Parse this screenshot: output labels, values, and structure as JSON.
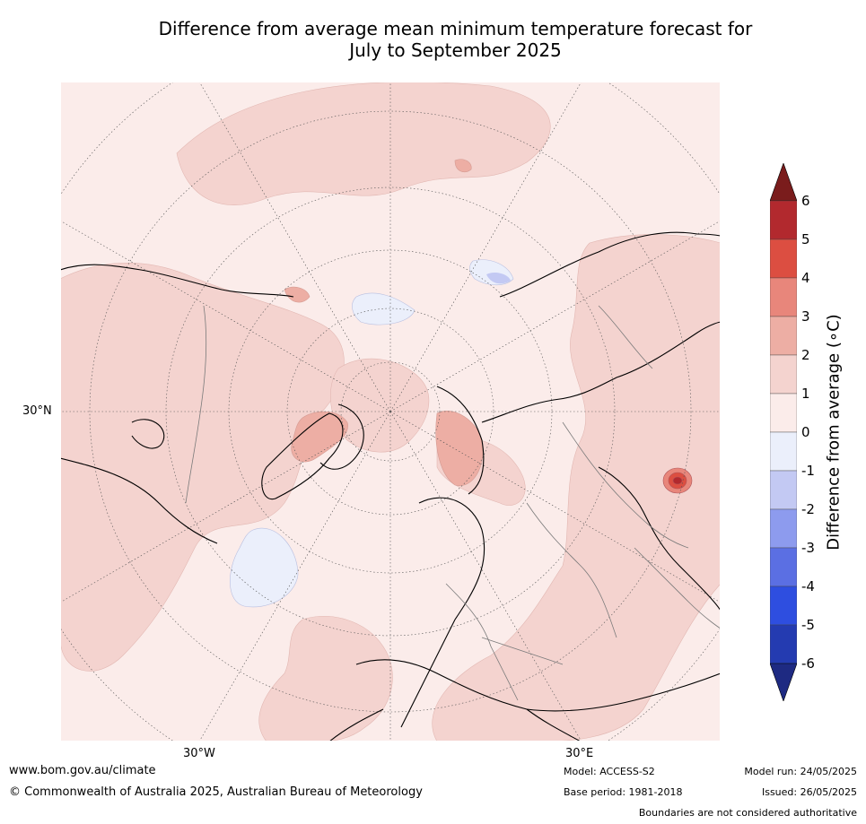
{
  "title_line1": "Difference from average mean minimum temperature forecast for",
  "title_line2": "July to September 2025",
  "graticule": {
    "lat_label": "30°N",
    "lon_labels": {
      "west": "30°W",
      "east": "30°E"
    }
  },
  "colorbar": {
    "label": "Difference from average (∘C)",
    "ticks": [
      "6",
      "5",
      "4",
      "3",
      "2",
      "1",
      "0",
      "-1",
      "-2",
      "-3",
      "-4",
      "-5",
      "-6"
    ],
    "colors": [
      "#b2292e",
      "#dc4e41",
      "#e8867b",
      "#edaea4",
      "#f4d3cf",
      "#fbecea",
      "#ebeffb",
      "#c3c9f3",
      "#8d9bee",
      "#5b6fe3",
      "#2e4ee0",
      "#243bb1"
    ],
    "over_color": "#7a1c1c",
    "under_color": "#1e2a82",
    "extend": "both"
  },
  "footer": {
    "url": "www.bom.gov.au/climate",
    "copyright": "© Commonwealth of Australia 2025, Australian Bureau of Meteorology",
    "model": "Model: ACCESS-S2",
    "base_period": "Base period: 1981-2018",
    "model_run": "Model run: 24/05/2025",
    "issued": "Issued: 26/05/2025",
    "disclaimer": "Boundaries are not considered authoritative"
  }
}
